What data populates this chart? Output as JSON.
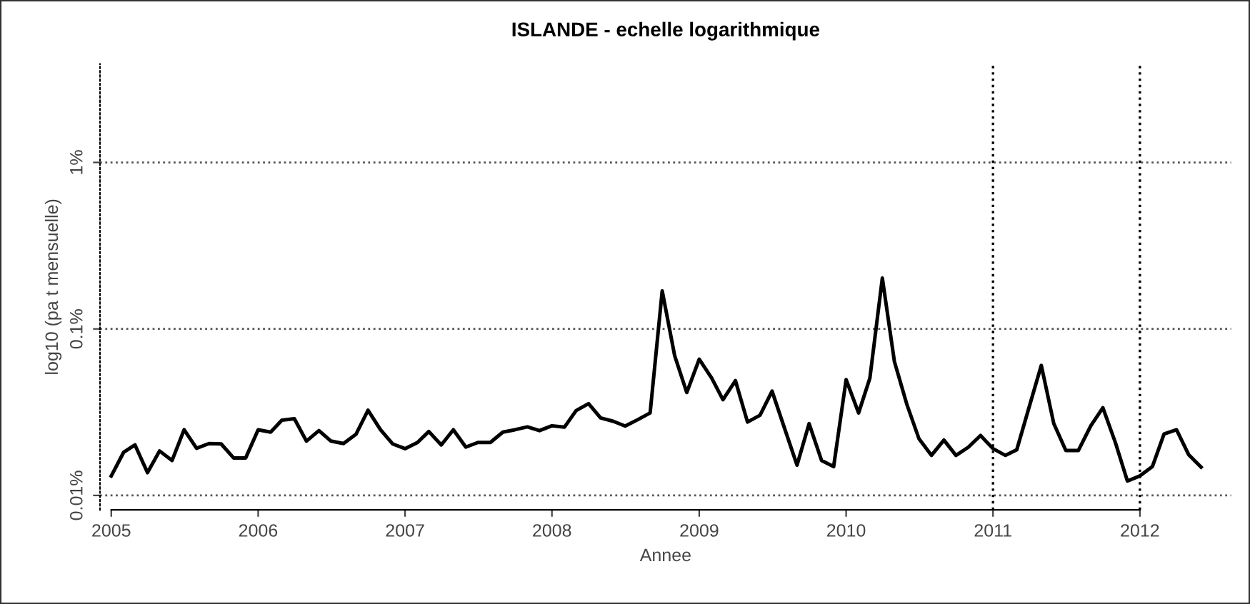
{
  "chart_data": {
    "type": "line",
    "title": "ISLANDE - echelle logarithmique",
    "xlabel": "Annee",
    "ylabel": "log10 (pa t mensuelle)",
    "x": [
      "2005-01",
      "2005-02",
      "2005-03",
      "2005-04",
      "2005-05",
      "2005-06",
      "2005-07",
      "2005-08",
      "2005-09",
      "2005-10",
      "2005-11",
      "2005-12",
      "2006-01",
      "2006-02",
      "2006-03",
      "2006-04",
      "2006-05",
      "2006-06",
      "2006-07",
      "2006-08",
      "2006-09",
      "2006-10",
      "2006-11",
      "2006-12",
      "2007-01",
      "2007-02",
      "2007-03",
      "2007-04",
      "2007-05",
      "2007-06",
      "2007-07",
      "2007-08",
      "2007-09",
      "2007-10",
      "2007-11",
      "2007-12",
      "2008-01",
      "2008-02",
      "2008-03",
      "2008-04",
      "2008-05",
      "2008-06",
      "2008-07",
      "2008-08",
      "2008-09",
      "2008-10",
      "2008-11",
      "2008-12",
      "2009-01",
      "2009-02",
      "2009-03",
      "2009-04",
      "2009-05",
      "2009-06",
      "2009-07",
      "2009-08",
      "2009-09",
      "2009-10",
      "2009-11",
      "2009-12",
      "2010-01",
      "2010-02",
      "2010-03",
      "2010-04",
      "2010-05",
      "2010-06",
      "2010-07",
      "2010-08",
      "2010-09",
      "2010-10",
      "2010-11",
      "2010-12",
      "2011-01",
      "2011-02",
      "2011-03",
      "2011-04",
      "2011-05",
      "2011-06",
      "2011-07",
      "2011-08",
      "2011-09",
      "2011-10",
      "2011-11",
      "2011-12",
      "2012-01",
      "2012-02",
      "2012-03",
      "2012-04",
      "2012-05",
      "2012-06"
    ],
    "series": [
      {
        "color": "#000000",
        "values": [
          0.0131,
          0.0182,
          0.0201,
          0.0137,
          0.0185,
          0.0162,
          0.0248,
          0.0192,
          0.0205,
          0.0204,
          0.0168,
          0.0168,
          0.0248,
          0.024,
          0.0283,
          0.0289,
          0.0212,
          0.0245,
          0.0212,
          0.0205,
          0.0233,
          0.0325,
          0.0248,
          0.0204,
          0.0191,
          0.0208,
          0.0242,
          0.0201,
          0.0248,
          0.0195,
          0.0208,
          0.0208,
          0.024,
          0.0248,
          0.0258,
          0.0245,
          0.0262,
          0.0257,
          0.0323,
          0.0356,
          0.0292,
          0.0279,
          0.0261,
          0.0285,
          0.0313,
          0.169,
          0.069,
          0.0415,
          0.0658,
          0.0506,
          0.0376,
          0.0489,
          0.0276,
          0.0303,
          0.0423,
          0.0253,
          0.0152,
          0.027,
          0.0162,
          0.0149,
          0.0496,
          0.0313,
          0.0506,
          0.202,
          0.0637,
          0.0352,
          0.0219,
          0.0174,
          0.0215,
          0.0174,
          0.0195,
          0.0229,
          0.0191,
          0.0174,
          0.0188,
          0.0341,
          0.0604,
          0.027,
          0.0186,
          0.0186,
          0.0262,
          0.0336,
          0.0208,
          0.0122,
          0.0131,
          0.0149,
          0.0234,
          0.0248,
          0.0176,
          0.0148
        ]
      }
    ],
    "log": "y",
    "ylim": [
      0.0082,
      3.9
    ],
    "yticks": [
      {
        "value": 0.01,
        "label": "0.01%"
      },
      {
        "value": 0.1,
        "label": "0.1%"
      },
      {
        "value": 1,
        "label": "1%"
      }
    ],
    "xlim": [
      "2004-12-04",
      "2012-08-15"
    ],
    "xticks": [
      "2005",
      "2006",
      "2007",
      "2008",
      "2009",
      "2010",
      "2011",
      "2012"
    ],
    "ref_lines": [
      {
        "axis": "x",
        "value": "2011",
        "line_style": "dotted",
        "color": "#000000"
      },
      {
        "axis": "x",
        "value": "2012",
        "line_style": "dotted",
        "color": "#000000"
      }
    ],
    "grid": "y",
    "line_style": "solid",
    "marker": "none"
  }
}
